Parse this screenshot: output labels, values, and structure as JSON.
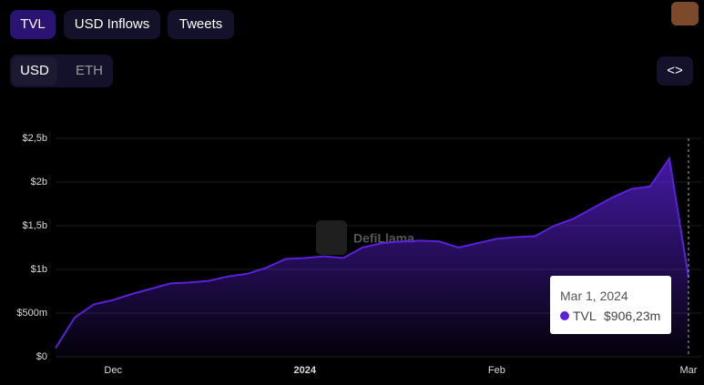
{
  "tabs": [
    "TVL",
    "USD Inflows",
    "Tweets"
  ],
  "currency": [
    "USD",
    "ETH"
  ],
  "embed": "<>",
  "watermark": "DefiLlama",
  "tooltip": {
    "title": "Mar 1, 2024",
    "value_label": "$906,23m"
  },
  "chart_data": {
    "type": "area",
    "categories": [
      null,
      null,
      null,
      "Dec",
      null,
      null,
      null,
      null,
      null,
      null,
      null,
      null,
      null,
      "2024",
      null,
      null,
      null,
      null,
      null,
      null,
      null,
      null,
      null,
      "Feb",
      null,
      null,
      null,
      null,
      null,
      null,
      null,
      null,
      null,
      "Mar"
    ],
    "series": [
      {
        "name": "TVL",
        "color": "#5b21d9",
        "values": [
          100000000,
          450000000,
          600000000,
          650000000,
          720000000,
          780000000,
          840000000,
          850000000,
          870000000,
          920000000,
          950000000,
          1020000000,
          1120000000,
          1130000000,
          1150000000,
          1130000000,
          1250000000,
          1300000000,
          1320000000,
          1330000000,
          1320000000,
          1250000000,
          1300000000,
          1350000000,
          1370000000,
          1380000000,
          1500000000,
          1580000000,
          1700000000,
          1820000000,
          1920000000,
          1950000000,
          2270000000,
          906230000
        ]
      }
    ],
    "ylim": [
      0,
      2500000000
    ],
    "yticks": [
      {
        "value": 0,
        "label": "$0"
      },
      {
        "value": 500000000,
        "label": "$500m"
      },
      {
        "value": 1000000000,
        "label": "$1b"
      },
      {
        "value": 1500000000,
        "label": "$1,5b"
      },
      {
        "value": 2000000000,
        "label": "$2b"
      },
      {
        "value": 2500000000,
        "label": "$2,5b"
      }
    ],
    "grid": true
  }
}
